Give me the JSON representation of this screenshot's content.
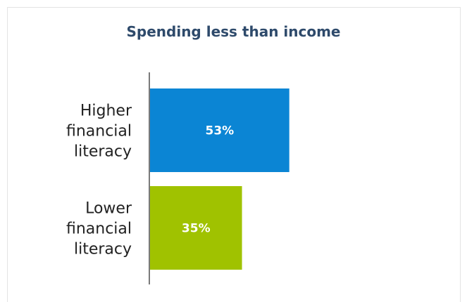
{
  "chart_data": {
    "type": "bar",
    "orientation": "horizontal",
    "title": "Spending less than income",
    "categories": [
      [
        "Higher",
        "financial",
        "literacy"
      ],
      [
        "Lower",
        "financial",
        "literacy"
      ]
    ],
    "values": [
      53,
      35
    ],
    "value_labels": [
      "53%",
      "35%"
    ],
    "colors": [
      "#0b85d4",
      "#a0c200"
    ],
    "xlim": [
      0,
      100
    ],
    "grid": false,
    "legend": "none"
  }
}
